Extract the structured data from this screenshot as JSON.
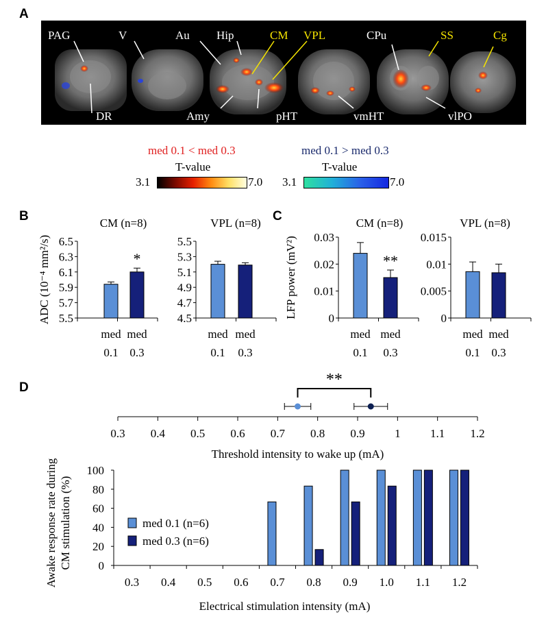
{
  "panels": {
    "a": "A",
    "b": "B",
    "c": "C",
    "d": "D"
  },
  "panel_a": {
    "regions_white": [
      "PAG",
      "V",
      "Au",
      "Hip",
      "CPu",
      "DR",
      "Amy",
      "pHT",
      "vmHT",
      "vlPO"
    ],
    "regions_yellow": [
      "CM",
      "VPL",
      "SS",
      "Cg"
    ],
    "legend_pos": {
      "title": "med 0.1 < med 0.3",
      "subtitle": "T-value",
      "min": "3.1",
      "max": "7.0",
      "title_color": "#e02020"
    },
    "legend_neg": {
      "title": "med 0.1 > med 0.3",
      "subtitle": "T-value",
      "min": "3.1",
      "max": "7.0",
      "title_color": "#1a2a6c"
    }
  },
  "colors": {
    "med01": "#5a8fd6",
    "med03": "#15207a",
    "med03_dark": "#0c1f52"
  },
  "chart_data": [
    {
      "id": "B-CM",
      "type": "bar",
      "title": "CM (n=8)",
      "ylabel": "ADC (10⁻⁴ mm²/s)",
      "ylim": [
        5.5,
        6.5
      ],
      "yticks": [
        "5.5",
        "5.7",
        "5.9",
        "6.1",
        "6.3",
        "6.5"
      ],
      "categories": [
        [
          "med",
          "0.1"
        ],
        [
          "med",
          "0.3"
        ]
      ],
      "values": [
        5.94,
        6.1
      ],
      "errors": [
        0.03,
        0.05
      ],
      "significance": [
        "",
        "*"
      ]
    },
    {
      "id": "B-VPL",
      "type": "bar",
      "title": "VPL (n=8)",
      "ylim": [
        4.5,
        5.5
      ],
      "yticks": [
        "4.5",
        "4.7",
        "4.9",
        "5.1",
        "5.3",
        "5.5"
      ],
      "categories": [
        [
          "med",
          "0.1"
        ],
        [
          "med",
          "0.3"
        ]
      ],
      "values": [
        5.2,
        5.19
      ],
      "errors": [
        0.04,
        0.03
      ],
      "significance": [
        "",
        ""
      ]
    },
    {
      "id": "C-CM",
      "type": "bar",
      "title": "CM (n=8)",
      "ylabel": "LFP power (mV²)",
      "ylim": [
        0,
        0.03
      ],
      "yticks": [
        "0",
        "0.01",
        "0.02",
        "0.03"
      ],
      "categories": [
        [
          "med",
          "0.1"
        ],
        [
          "med",
          "0.3"
        ]
      ],
      "values": [
        0.024,
        0.015
      ],
      "errors": [
        0.004,
        0.0028
      ],
      "significance": [
        "",
        "**"
      ]
    },
    {
      "id": "C-VPL",
      "type": "bar",
      "title": "VPL (n=8)",
      "ylim": [
        0,
        0.015
      ],
      "yticks": [
        "0",
        "0.005",
        "0.01",
        "0.015"
      ],
      "categories": [
        [
          "med",
          "0.1"
        ],
        [
          "med",
          "0.3"
        ]
      ],
      "values": [
        0.0086,
        0.0084
      ],
      "errors": [
        0.0018,
        0.0016
      ],
      "significance": [
        "",
        ""
      ]
    },
    {
      "id": "D-threshold",
      "type": "scatter",
      "xlabel": "Threshold intensity to wake up (mA)",
      "xlim": [
        0.3,
        1.2
      ],
      "xticks": [
        "0.3",
        "0.4",
        "0.5",
        "0.6",
        "0.7",
        "0.8",
        "0.9",
        "1",
        "1.1",
        "1.2"
      ],
      "points": [
        {
          "name": "med 0.1",
          "x": 0.75,
          "err": 0.033
        },
        {
          "name": "med 0.3",
          "x": 0.933,
          "err": 0.042
        }
      ],
      "significance": "**"
    },
    {
      "id": "D-response",
      "type": "bar",
      "ylabel": "Awake response rate during CM stimulation (%)",
      "ylabel_lines": [
        "Awake response rate during",
        "CM stimulation (%)"
      ],
      "xlabel": "Electrical stimulation intensity (mA)",
      "ylim": [
        0,
        100
      ],
      "yticks": [
        "0",
        "20",
        "40",
        "60",
        "80",
        "100"
      ],
      "categories": [
        "0.3",
        "0.4",
        "0.5",
        "0.6",
        "0.7",
        "0.8",
        "0.9",
        "1.0",
        "1.1",
        "1.2"
      ],
      "series": [
        {
          "name": "med 0.1 (n=6)",
          "values": [
            0,
            0,
            0,
            0,
            66.7,
            83.3,
            100,
            100,
            100,
            100
          ]
        },
        {
          "name": "med 0.3 (n=6)",
          "values": [
            0,
            0,
            0,
            0,
            0,
            16.7,
            66.7,
            83.3,
            100,
            100
          ]
        }
      ]
    }
  ]
}
